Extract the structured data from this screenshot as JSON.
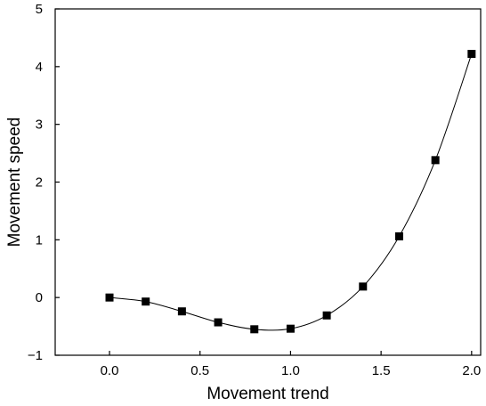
{
  "chart_data": {
    "type": "line",
    "title": "",
    "xlabel": "Movement trend",
    "ylabel": "Movement speed",
    "xlim": [
      -0.3,
      2.05
    ],
    "ylim": [
      -1,
      5
    ],
    "x_ticks": [
      0.0,
      0.5,
      1.0,
      1.5,
      2.0
    ],
    "x_tick_labels": [
      "0.0",
      "0.5",
      "1.0",
      "1.5",
      "2.0"
    ],
    "y_ticks": [
      -1,
      0,
      1,
      2,
      3,
      4,
      5
    ],
    "y_tick_labels": [
      "−1",
      "0",
      "1",
      "2",
      "3",
      "4",
      "5"
    ],
    "grid": false,
    "legend": "none",
    "marker": "square",
    "line_color": "#000000",
    "marker_color": "#000000",
    "series": [
      {
        "x": [
          0.0,
          0.2,
          0.4,
          0.6,
          0.8,
          1.0,
          1.2,
          1.4,
          1.6,
          1.8,
          2.0
        ],
        "y": [
          0.0,
          -0.07,
          -0.24,
          -0.43,
          -0.55,
          -0.54,
          -0.31,
          0.19,
          1.06,
          2.38,
          4.22
        ]
      }
    ]
  }
}
